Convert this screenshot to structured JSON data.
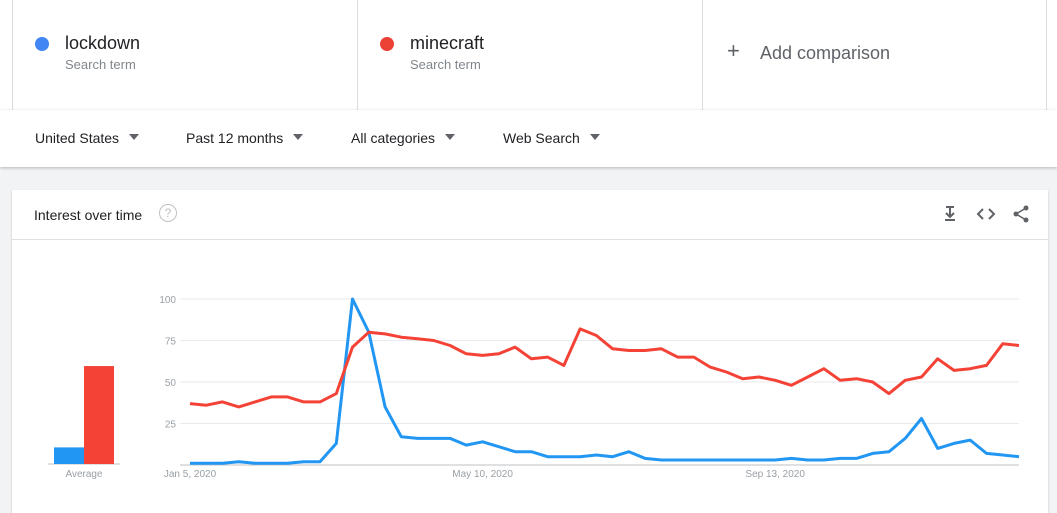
{
  "search_terms": [
    {
      "name": "lockdown",
      "sub": "Search term",
      "color": "#4285f4"
    },
    {
      "name": "minecraft",
      "sub": "Search term",
      "color": "#ea4335"
    }
  ],
  "add_comparison": {
    "label": "Add comparison",
    "icon": "plus-icon"
  },
  "filters": [
    {
      "label": "United States"
    },
    {
      "label": "Past 12 months"
    },
    {
      "label": "All categories"
    },
    {
      "label": "Web Search"
    }
  ],
  "card": {
    "title": "Interest over time",
    "help_icon": "?",
    "tools": [
      "download-icon",
      "embed-code-icon",
      "share-icon"
    ]
  },
  "chart_data": {
    "type": "line",
    "y_ticks": [
      25,
      50,
      75,
      100
    ],
    "ylim": [
      0,
      100
    ],
    "x_tick_labels": [
      {
        "label": "Jan 5, 2020",
        "index": 0
      },
      {
        "label": "May 10, 2020",
        "index": 18
      },
      {
        "label": "Sep 13, 2020",
        "index": 36
      }
    ],
    "average_label": "Average",
    "averages": [
      {
        "name": "lockdown",
        "value": 10
      },
      {
        "name": "minecraft",
        "value": 59
      }
    ],
    "series": [
      {
        "name": "lockdown",
        "color": "#2196f3",
        "values": [
          1,
          1,
          1,
          2,
          1,
          1,
          1,
          2,
          2,
          13,
          100,
          80,
          35,
          17,
          16,
          16,
          16,
          12,
          14,
          11,
          8,
          8,
          5,
          5,
          5,
          6,
          5,
          8,
          4,
          3,
          3,
          3,
          3,
          3,
          3,
          3,
          3,
          4,
          3,
          3,
          4,
          4,
          7,
          8,
          16,
          28,
          10,
          13,
          15,
          7,
          6,
          5
        ]
      },
      {
        "name": "minecraft",
        "color": "#f44336",
        "values": [
          37,
          36,
          38,
          35,
          38,
          41,
          41,
          38,
          38,
          43,
          71,
          80,
          79,
          77,
          76,
          75,
          72,
          67,
          66,
          67,
          71,
          64,
          65,
          60,
          82,
          78,
          70,
          69,
          69,
          70,
          65,
          65,
          59,
          56,
          52,
          53,
          51,
          48,
          53,
          58,
          51,
          52,
          50,
          43,
          51,
          53,
          64,
          57,
          58,
          60,
          73,
          72
        ]
      }
    ]
  }
}
